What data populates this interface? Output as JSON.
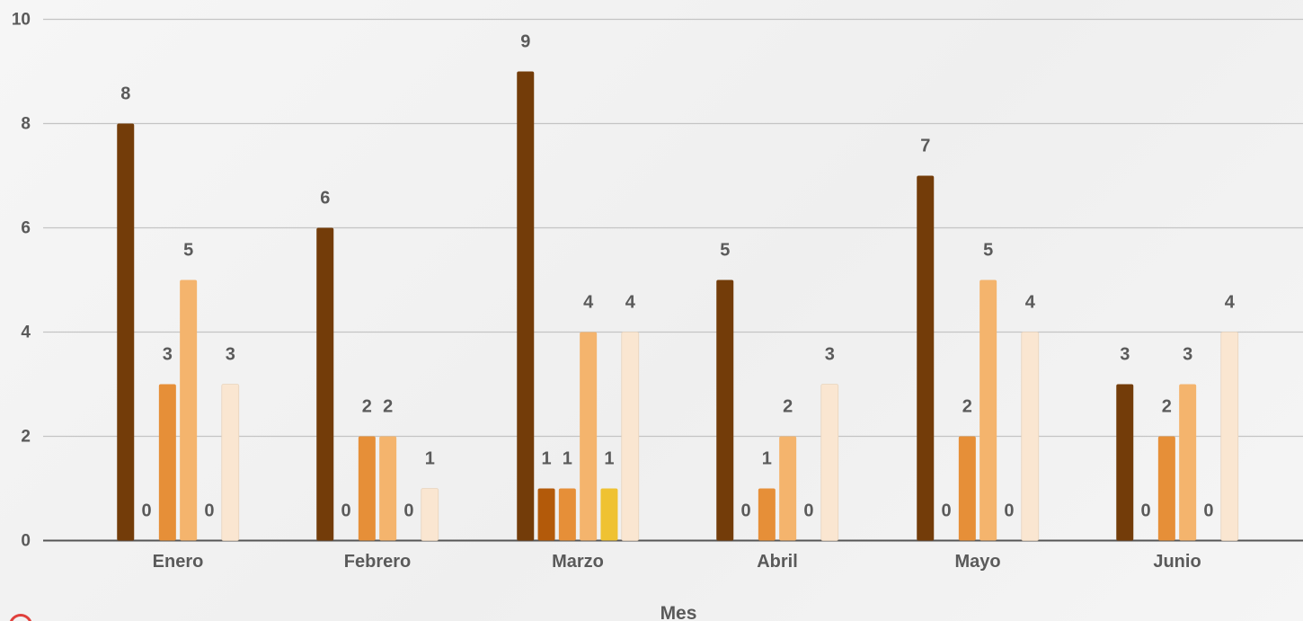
{
  "chart_data": {
    "type": "bar",
    "xlabel": "Mes",
    "ylabel": "",
    "ylim": [
      0,
      10
    ],
    "yticks": [
      0,
      2,
      4,
      6,
      8,
      10
    ],
    "grid": true,
    "legend": "none",
    "categories": [
      "Enero",
      "Febrero",
      "Marzo",
      "Abril",
      "Mayo",
      "Junio"
    ],
    "series": [
      {
        "color": "#733c09",
        "values": [
          8,
          6,
          9,
          5,
          7,
          3
        ]
      },
      {
        "color": "#b35a0a",
        "values": [
          0,
          0,
          1,
          0,
          0,
          0
        ]
      },
      {
        "color": "#e68f38",
        "values": [
          3,
          2,
          1,
          1,
          2,
          2
        ]
      },
      {
        "color": "#f4b46d",
        "values": [
          5,
          2,
          4,
          2,
          5,
          3
        ]
      },
      {
        "color": "#efc232",
        "values": [
          0,
          0,
          1,
          0,
          0,
          0
        ]
      },
      {
        "color": "#fae6d1",
        "values": [
          3,
          1,
          4,
          3,
          4,
          4
        ]
      }
    ]
  },
  "colors": {
    "grid": "#c4c4c4",
    "axis": "#555555",
    "text": "#5a5a5a",
    "logo": "#e0403c"
  },
  "icons": {
    "logo": "circle-logo-icon"
  }
}
